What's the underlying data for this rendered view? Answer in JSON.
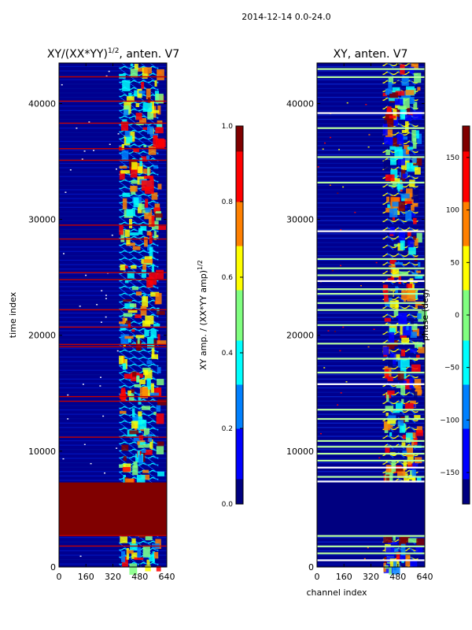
{
  "suptitle": "2014-12-14 0.0-24.0",
  "colors": {
    "jet": [
      "#000080",
      "#0000ff",
      "#0080ff",
      "#00ffff",
      "#80ff80",
      "#ffff00",
      "#ff8000",
      "#ff0000",
      "#800000"
    ],
    "background": "#00008f",
    "axis": "#000000"
  },
  "chart_data": [
    {
      "type": "heatmap",
      "title_main": "XY/(XX*YY)",
      "title_sup": "1/2",
      "title_tail": ", anten. V7",
      "xlabel": "",
      "ylabel": "time index",
      "xlim": [
        0,
        640
      ],
      "ylim": [
        0,
        43500
      ],
      "xticks": [
        "0",
        "160",
        "320",
        "480",
        "640"
      ],
      "yticks": [
        "0",
        "10000",
        "20000",
        "30000",
        "40000"
      ],
      "xtick_values": [
        0,
        160,
        320,
        480,
        640
      ],
      "ytick_values": [
        0,
        10000,
        20000,
        30000,
        40000
      ],
      "colorbar": {
        "label_main": "XY amp. / (XX*YY amp)",
        "label_sup": "1/2",
        "range": [
          0,
          1
        ],
        "ticks": [
          "0.0",
          "0.2",
          "0.4",
          "0.6",
          "0.8",
          "1.0"
        ],
        "tick_values": [
          0,
          0.2,
          0.4,
          0.6,
          0.8,
          1.0
        ]
      },
      "saturated_block_time_range": [
        2700,
        7300
      ],
      "active_channel_range": [
        355,
        590
      ],
      "flag_rows": [
        1800,
        2700,
        11200,
        14300,
        14700,
        19000,
        19200,
        20700,
        22200,
        24800,
        25400,
        28300,
        29500,
        35100,
        36100,
        38300,
        40200,
        42300
      ]
    },
    {
      "type": "heatmap",
      "title_main": "XY, anten. V7",
      "xlabel": "channel index",
      "ylabel": "",
      "xlim": [
        0,
        640
      ],
      "ylim": [
        0,
        43500
      ],
      "xticks": [
        "0",
        "160",
        "320",
        "480",
        "640"
      ],
      "yticks": [
        "0",
        "10000",
        "20000",
        "30000",
        "40000"
      ],
      "xtick_values": [
        0,
        160,
        320,
        480,
        640
      ],
      "ytick_values": [
        0,
        10000,
        20000,
        30000,
        40000
      ],
      "colorbar": {
        "label_main": "phase (deg)",
        "range": [
          -180,
          180
        ],
        "ticks": [
          "−150",
          "−100",
          "−50",
          "0",
          "50",
          "100",
          "150"
        ],
        "tick_values": [
          -150,
          -100,
          -50,
          0,
          50,
          100,
          150
        ]
      },
      "flat_block_time_range": [
        2700,
        7300
      ],
      "active_channel_range": [
        390,
        600
      ],
      "flag_rows": [
        600,
        1200,
        1800,
        2700,
        7400,
        7800,
        8600,
        9200,
        9800,
        10400,
        10900,
        12800,
        13600,
        15800,
        16800,
        18000,
        19300,
        20900,
        22200,
        22800,
        23600,
        24000,
        24700,
        25200,
        25800,
        26600,
        29000,
        33200,
        35400,
        37900,
        39200,
        42300,
        43000
      ]
    }
  ]
}
